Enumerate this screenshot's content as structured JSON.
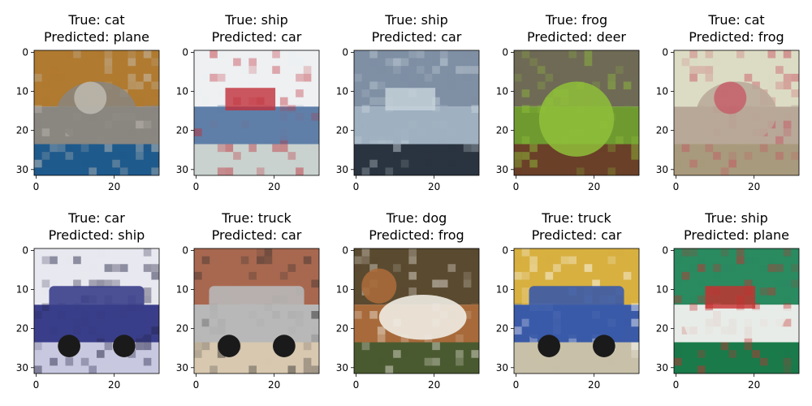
{
  "chart_data": [
    {
      "type": "image",
      "title_true": "True: cat",
      "title_pred": "Predicted: plane",
      "image_subject": "cat",
      "xticks": [
        "0",
        "20"
      ],
      "yticks": [
        "0",
        "10",
        "20",
        "30"
      ],
      "xlim": [
        0,
        31
      ],
      "ylim": [
        31,
        0
      ],
      "colors": {
        "top": "#b07a30",
        "mid": "#8a8680",
        "bottom": "#1f5a8c",
        "accent": "#c8c4bc"
      }
    },
    {
      "type": "image",
      "title_true": "True: ship",
      "title_pred": "Predicted: car",
      "image_subject": "ship",
      "xticks": [
        "0",
        "20"
      ],
      "yticks": [
        "0",
        "10",
        "20",
        "30"
      ],
      "xlim": [
        0,
        31
      ],
      "ylim": [
        31,
        0
      ],
      "colors": {
        "top": "#eef0f2",
        "mid": "#5f7fa8",
        "bottom": "#c9d2cf",
        "accent": "#c0303a"
      }
    },
    {
      "type": "image",
      "title_true": "True: ship",
      "title_pred": "Predicted: car",
      "image_subject": "ship",
      "xticks": [
        "0",
        "20"
      ],
      "yticks": [
        "0",
        "10",
        "20",
        "30"
      ],
      "xlim": [
        0,
        31
      ],
      "ylim": [
        31,
        0
      ],
      "colors": {
        "top": "#7f8fa4",
        "mid": "#9fb0c0",
        "bottom": "#2a3440",
        "accent": "#c8d4dc"
      }
    },
    {
      "type": "image",
      "title_true": "True: frog",
      "title_pred": "Predicted: deer",
      "image_subject": "frog",
      "xticks": [
        "0",
        "20"
      ],
      "yticks": [
        "0",
        "10",
        "20",
        "30"
      ],
      "xlim": [
        0,
        31
      ],
      "ylim": [
        31,
        0
      ],
      "colors": {
        "top": "#6f6a55",
        "mid": "#6f9a30",
        "bottom": "#6a4028",
        "accent": "#8fbf3a"
      }
    },
    {
      "type": "image",
      "title_true": "True: cat",
      "title_pred": "Predicted: frog",
      "image_subject": "cat",
      "xticks": [
        "0",
        "20"
      ],
      "yticks": [
        "0",
        "10",
        "20",
        "30"
      ],
      "xlim": [
        0,
        31
      ],
      "ylim": [
        31,
        0
      ],
      "colors": {
        "top": "#dcdcc4",
        "mid": "#b8a898",
        "bottom": "#a89a7c",
        "accent": "#c85060"
      }
    },
    {
      "type": "image",
      "title_true": "True: car",
      "title_pred": "Predicted: ship",
      "image_subject": "car",
      "xticks": [
        "0",
        "20"
      ],
      "yticks": [
        "0",
        "10",
        "20",
        "30"
      ],
      "xlim": [
        0,
        31
      ],
      "ylim": [
        31,
        0
      ],
      "colors": {
        "top": "#e8e8f0",
        "mid": "#3a3e8a",
        "bottom": "#c8c8e0",
        "accent": "#202040"
      }
    },
    {
      "type": "image",
      "title_true": "True: truck",
      "title_pred": "Predicted: car",
      "image_subject": "truck",
      "xticks": [
        "0",
        "20"
      ],
      "yticks": [
        "0",
        "10",
        "20",
        "30"
      ],
      "xlim": [
        0,
        31
      ],
      "ylim": [
        31,
        0
      ],
      "colors": {
        "top": "#a86850",
        "mid": "#b8b8b8",
        "bottom": "#d8c8b0",
        "accent": "#2a2a2a"
      }
    },
    {
      "type": "image",
      "title_true": "True: dog",
      "title_pred": "Predicted: frog",
      "image_subject": "dog",
      "xticks": [
        "0",
        "20"
      ],
      "yticks": [
        "0",
        "10",
        "20",
        "30"
      ],
      "xlim": [
        0,
        31
      ],
      "ylim": [
        31,
        0
      ],
      "colors": {
        "top": "#5a4a30",
        "mid": "#a86a3a",
        "bottom": "#4a5a30",
        "accent": "#f0ece4"
      }
    },
    {
      "type": "image",
      "title_true": "True: truck",
      "title_pred": "Predicted: car",
      "image_subject": "truck",
      "xticks": [
        "0",
        "20"
      ],
      "yticks": [
        "0",
        "10",
        "20",
        "30"
      ],
      "xlim": [
        0,
        31
      ],
      "ylim": [
        31,
        0
      ],
      "colors": {
        "top": "#d8b040",
        "mid": "#3a5aa8",
        "bottom": "#c8c0a8",
        "accent": "#ffffff"
      }
    },
    {
      "type": "image",
      "title_true": "True: ship",
      "title_pred": "Predicted: plane",
      "image_subject": "ship",
      "xticks": [
        "0",
        "20"
      ],
      "yticks": [
        "0",
        "10",
        "20",
        "30"
      ],
      "xlim": [
        0,
        31
      ],
      "ylim": [
        31,
        0
      ],
      "colors": {
        "top": "#2a8a60",
        "mid": "#e8ece8",
        "bottom": "#1a7a4a",
        "accent": "#c83030"
      }
    }
  ]
}
